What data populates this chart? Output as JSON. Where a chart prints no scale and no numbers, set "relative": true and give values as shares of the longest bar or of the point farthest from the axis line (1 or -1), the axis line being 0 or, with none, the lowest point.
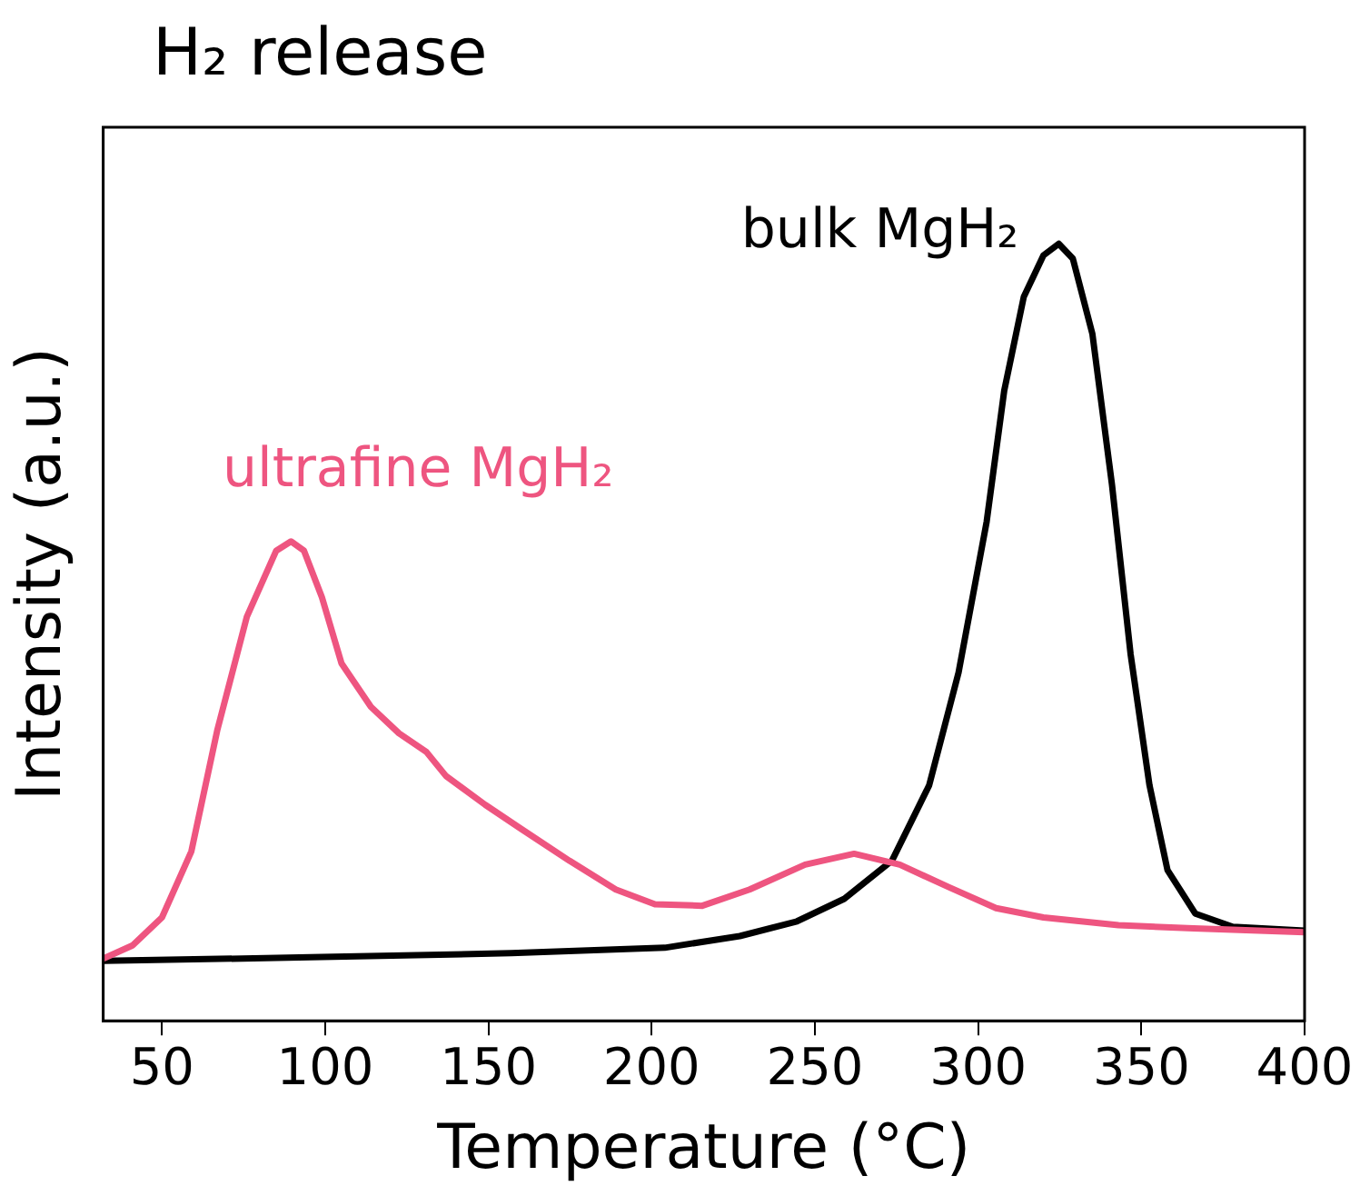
{
  "chart_data": {
    "type": "line",
    "title": "H₂ release",
    "xlabel": "Temperature (°C)",
    "ylabel": "Intensity (a.u.)",
    "relative": true,
    "grid": false,
    "legend": false,
    "marker": "none",
    "line_style": "solid",
    "xlim": [
      32,
      400
    ],
    "xticks": [
      50,
      100,
      150,
      200,
      250,
      300,
      350,
      400
    ],
    "series": [
      {
        "name": "ultrafine MgH₂",
        "color": "#ee5580",
        "x": [
          32,
          41,
          50,
          59,
          67,
          76,
          85,
          89.5,
          93.5,
          99,
          105,
          114,
          122.6,
          131,
          137,
          149,
          160,
          174.8,
          189,
          201,
          215.5,
          230,
          247,
          262,
          276,
          291,
          305.5,
          320,
          343,
          366,
          400
        ],
        "values": [
          0.08,
          0.097,
          0.133,
          0.218,
          0.375,
          0.52,
          0.605,
          0.617,
          0.605,
          0.545,
          0.46,
          0.404,
          0.37,
          0.346,
          0.315,
          0.278,
          0.247,
          0.206,
          0.169,
          0.15,
          0.148,
          0.169,
          0.201,
          0.215,
          0.201,
          0.172,
          0.145,
          0.133,
          0.123,
          0.119,
          0.114
        ]
      },
      {
        "name": "bulk MgH₂",
        "color": "#000000",
        "x": [
          32,
          99,
          157,
          204,
          227,
          244.5,
          259,
          273.6,
          285,
          294,
          302.6,
          308,
          314,
          320,
          324.7,
          329,
          335,
          341,
          346.7,
          352.5,
          358,
          366.5,
          378,
          400
        ],
        "values": [
          0.077,
          0.082,
          0.087,
          0.094,
          0.109,
          0.128,
          0.157,
          0.206,
          0.303,
          0.448,
          0.642,
          0.811,
          0.932,
          0.985,
          1,
          0.981,
          0.884,
          0.69,
          0.472,
          0.303,
          0.194,
          0.138,
          0.121,
          0.116
        ]
      }
    ]
  }
}
